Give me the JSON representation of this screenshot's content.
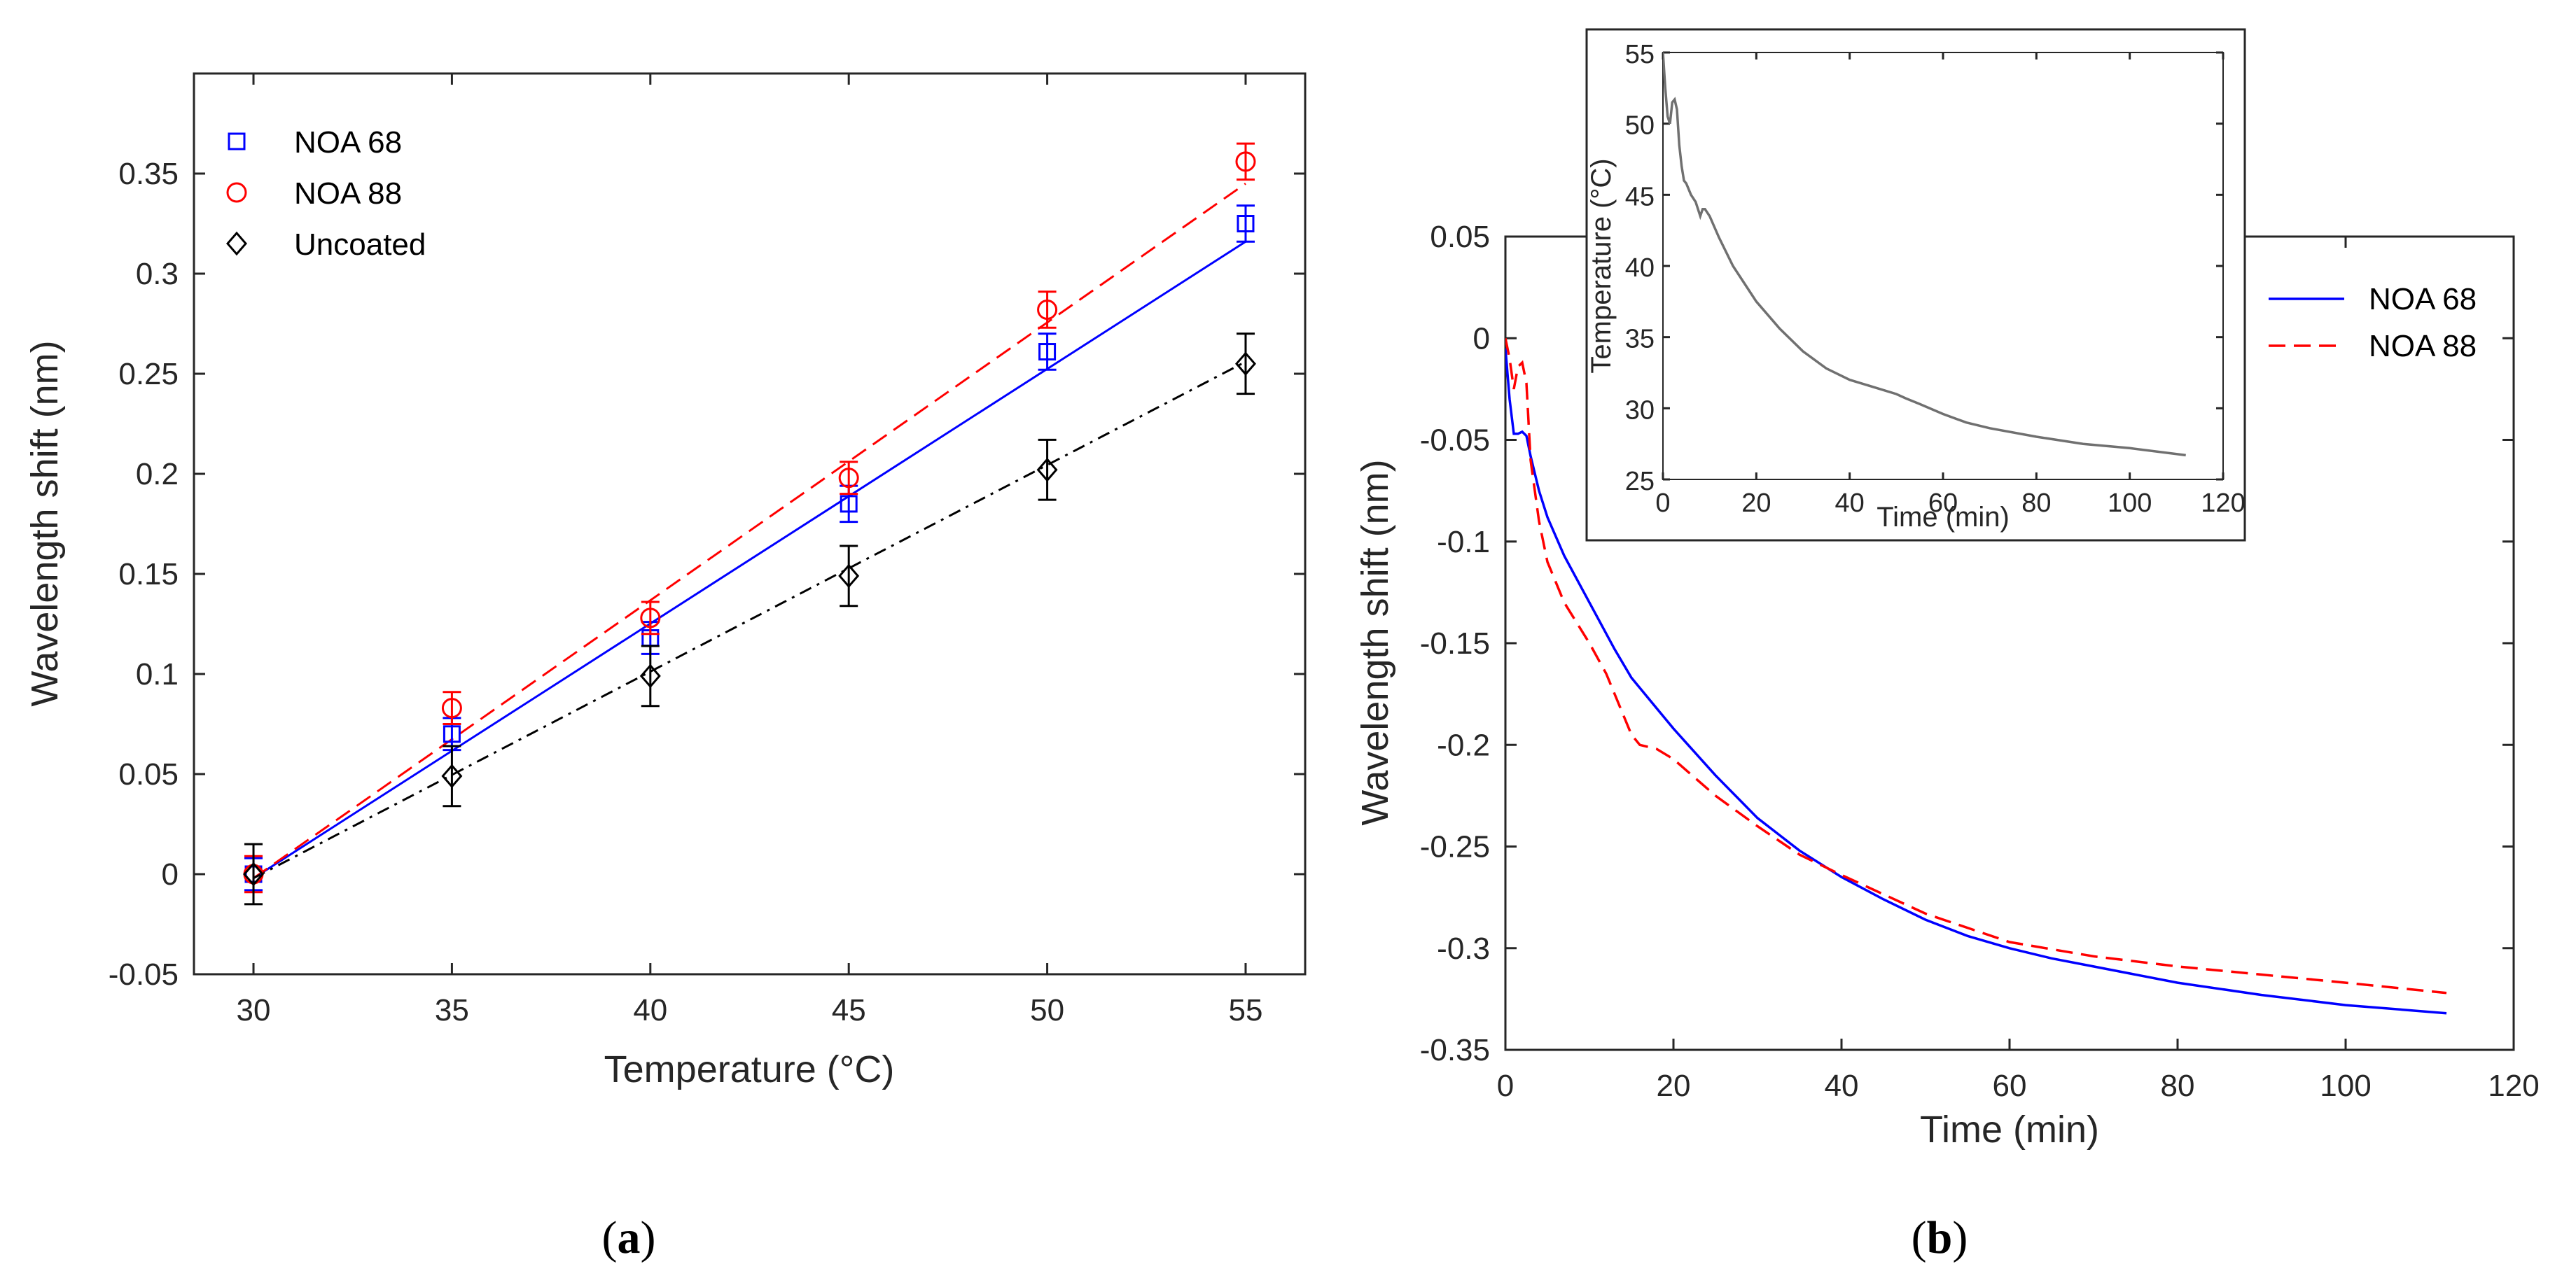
{
  "chart_data": [
    {
      "type": "scatter",
      "panel": "(a)",
      "caption_open": "(",
      "caption_letter": "a",
      "caption_close": ")",
      "xlabel": "Temperature (°C)",
      "ylabel": "Wavelength shift (nm)",
      "xlim": [
        28.5,
        56.5
      ],
      "ylim": [
        -0.05,
        0.4
      ],
      "xticks": [
        "30",
        "35",
        "40",
        "45",
        "50",
        "55"
      ],
      "yticks": [
        "-0.05",
        "0",
        "0.05",
        "0.1",
        "0.15",
        "0.2",
        "0.25",
        "0.3",
        "0.35"
      ],
      "legend_position": "top-left",
      "x": [
        30,
        35,
        40,
        45,
        50,
        55
      ],
      "series": [
        {
          "name": "NOA 68",
          "marker": "square",
          "color": "#0000ff",
          "line": "solid",
          "values": [
            0.0,
            0.07,
            0.118,
            0.185,
            0.261,
            0.325
          ],
          "err": [
            0.008,
            0.008,
            0.008,
            0.009,
            0.009,
            0.009
          ],
          "fit": [
            -0.002,
            0.316
          ]
        },
        {
          "name": "NOA 88",
          "marker": "circle",
          "color": "#ff0000",
          "line": "dashed",
          "values": [
            0.0,
            0.083,
            0.128,
            0.198,
            0.282,
            0.356
          ],
          "err": [
            0.009,
            0.008,
            0.008,
            0.008,
            0.009,
            0.009
          ],
          "fit": [
            -0.002,
            0.345
          ]
        },
        {
          "name": "Uncoated",
          "marker": "diamond",
          "color": "#000000",
          "line": "dashdot",
          "values": [
            0.0,
            0.049,
            0.099,
            0.149,
            0.202,
            0.255
          ],
          "err": [
            0.015,
            0.015,
            0.015,
            0.015,
            0.015,
            0.015
          ],
          "fit": [
            -0.002,
            0.256
          ]
        }
      ]
    },
    {
      "type": "line",
      "panel": "(b)",
      "caption_open": "(",
      "caption_letter": "b",
      "caption_close": ")",
      "xlabel": "Time (min)",
      "ylabel": "Wavelength shift (nm)",
      "xlim": [
        0,
        120
      ],
      "ylim": [
        -0.35,
        0.05
      ],
      "xticks": [
        "0",
        "20",
        "40",
        "60",
        "80",
        "100",
        "120"
      ],
      "yticks": [
        "-0.35",
        "-0.3",
        "-0.25",
        "-0.2",
        "-0.15",
        "-0.1",
        "-0.05",
        "0",
        "0.05"
      ],
      "legend_position": "top-right",
      "series": [
        {
          "name": "NOA 68",
          "color": "#0000ff",
          "line": "solid",
          "x": [
            0,
            0.5,
            1,
            1.5,
            2,
            2.5,
            3,
            4,
            5,
            7,
            10,
            13,
            15,
            18,
            20,
            25,
            30,
            35,
            40,
            45,
            50,
            55,
            60,
            65,
            70,
            80,
            90,
            100,
            112
          ],
          "y": [
            -0.005,
            -0.03,
            -0.047,
            -0.047,
            -0.046,
            -0.048,
            -0.058,
            -0.075,
            -0.088,
            -0.107,
            -0.13,
            -0.153,
            -0.167,
            -0.182,
            -0.192,
            -0.215,
            -0.236,
            -0.252,
            -0.265,
            -0.276,
            -0.286,
            -0.294,
            -0.3,
            -0.305,
            -0.309,
            -0.317,
            -0.323,
            -0.328,
            -0.332
          ]
        },
        {
          "name": "NOA 88",
          "color": "#ff0000",
          "line": "dashed",
          "x": [
            0,
            0.5,
            1,
            1.5,
            2,
            2.5,
            3,
            4,
            5,
            7,
            10,
            12,
            15,
            16,
            18,
            20,
            25,
            30,
            35,
            40,
            50,
            60,
            70,
            80,
            90,
            100,
            112
          ],
          "y": [
            0.0,
            -0.01,
            -0.025,
            -0.014,
            -0.012,
            -0.022,
            -0.06,
            -0.09,
            -0.11,
            -0.13,
            -0.15,
            -0.165,
            -0.195,
            -0.2,
            -0.202,
            -0.207,
            -0.225,
            -0.24,
            -0.254,
            -0.264,
            -0.283,
            -0.297,
            -0.304,
            -0.309,
            -0.313,
            -0.317,
            -0.322
          ]
        }
      ],
      "inset": {
        "type": "line",
        "xlabel": "Time (min)",
        "ylabel": "Temperature (°C)",
        "xlim": [
          0,
          120
        ],
        "ylim": [
          25,
          55
        ],
        "xticks": [
          "0",
          "20",
          "40",
          "60",
          "80",
          "100",
          "120"
        ],
        "yticks": [
          "25",
          "30",
          "35",
          "40",
          "45",
          "50",
          "55"
        ],
        "color": "#707070",
        "x": [
          0,
          0.5,
          1,
          1.5,
          2,
          2.5,
          3,
          3.5,
          4,
          4.5,
          5,
          6,
          7,
          8,
          8.5,
          9,
          10,
          12,
          15,
          18,
          20,
          25,
          30,
          35,
          40,
          45,
          50,
          52,
          55,
          60,
          65,
          70,
          80,
          90,
          100,
          112
        ],
        "y": [
          55,
          52.5,
          50.5,
          50,
          51.5,
          51.7,
          51,
          48.5,
          47,
          46,
          45.8,
          45,
          44.5,
          43.5,
          44,
          44,
          43.5,
          42,
          40,
          38.5,
          37.5,
          35.6,
          34,
          32.8,
          32,
          31.5,
          31,
          30.7,
          30.3,
          29.6,
          29,
          28.6,
          28,
          27.5,
          27.2,
          26.7
        ]
      }
    }
  ]
}
